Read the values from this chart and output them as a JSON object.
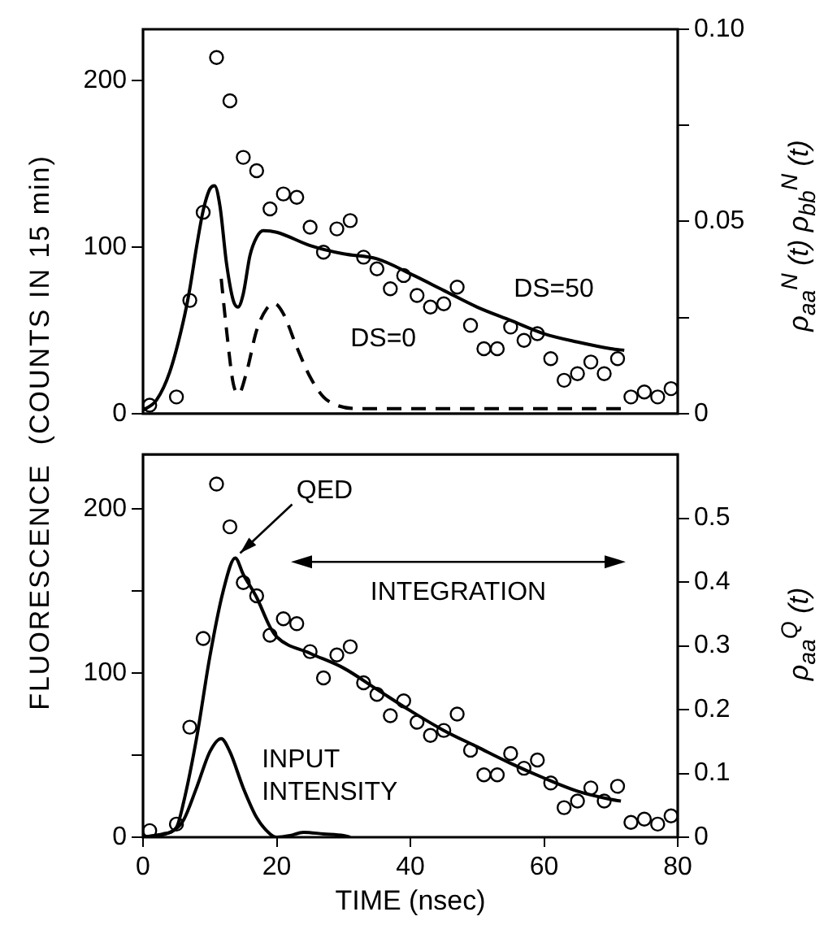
{
  "chart_data": [
    {
      "type": "scatter",
      "ylabel": "FLUORESCENCE  (COUNTS IN 15 min)",
      "y2label": "ρ$_{aa}$$^{N}$ (t) ρ$_{bb}$$^{N}$ (t)",
      "xlim": [
        0,
        80
      ],
      "xticks": [
        0,
        20,
        40,
        60,
        80
      ],
      "ylim": [
        0,
        231
      ],
      "yticks": [
        0,
        100,
        200
      ],
      "y2lim": [
        0,
        0.1
      ],
      "y2ticks": [
        0,
        {
          "value": 0.025,
          "label": null
        },
        0.05,
        {
          "value": 0.075,
          "label": null
        },
        {
          "value": 0.1,
          "label": "0.10"
        }
      ],
      "tick_labels": "y",
      "series": [
        {
          "color": "#000000",
          "marker": "circle",
          "x": [
            1,
            5,
            7,
            9,
            11,
            13,
            15,
            17,
            19,
            21,
            23,
            25,
            27,
            29,
            31,
            33,
            35,
            37,
            39,
            41,
            43,
            45,
            47,
            49,
            51,
            53,
            55,
            57,
            59,
            61,
            63,
            65,
            67,
            69,
            71,
            73,
            75,
            77,
            79
          ],
          "values": [
            5,
            10,
            68,
            121,
            214,
            188,
            154,
            146,
            123,
            132,
            130,
            112,
            97,
            111,
            116,
            94,
            87,
            75,
            83,
            71,
            64,
            66,
            76,
            53,
            39,
            39,
            52,
            44,
            48,
            33,
            20,
            24,
            31,
            24,
            33,
            10,
            13,
            10,
            15
          ]
        },
        {
          "type": "line",
          "name": "DS=50",
          "color": "#000000",
          "marker": "none",
          "line_style": "solid",
          "x": [
            0,
            2,
            4,
            6,
            7,
            8,
            9,
            10,
            10.7,
            11.5,
            12.5,
            13.5,
            14.2,
            15,
            16,
            17,
            18,
            20,
            25,
            30,
            35,
            40,
            45,
            50,
            55,
            60,
            65,
            70,
            72
          ],
          "values": [
            2,
            8,
            25,
            55,
            75,
            100,
            122,
            135,
            137,
            125,
            90,
            68,
            64,
            72,
            95,
            106,
            110,
            109,
            101,
            96,
            93,
            84,
            74,
            64,
            56,
            48,
            43,
            39,
            38
          ]
        },
        {
          "type": "line",
          "name": "DS=0",
          "color": "#000000",
          "marker": "none",
          "line_style": "dashed",
          "x": [
            11.7,
            12.5,
            13.5,
            14.3,
            15.5,
            17,
            18.5,
            19.7,
            21,
            23,
            25,
            27,
            29,
            32,
            40,
            72
          ],
          "values": [
            81,
            50,
            18,
            12,
            25,
            50,
            63,
            66,
            60,
            40,
            22,
            10,
            5,
            3,
            3,
            3
          ]
        }
      ]
    },
    {
      "type": "scatter",
      "xlabel": "TIME (nsec)",
      "y2label": "ρ$_{aa}$$^{Q}$ (t)",
      "xlim": [
        0,
        80
      ],
      "xticks": [
        0,
        20,
        40,
        60,
        80
      ],
      "ylim": [
        0,
        233
      ],
      "yticks": [
        0,
        {
          "value": 50,
          "label": null
        },
        100,
        {
          "value": 150,
          "label": null
        },
        200
      ],
      "y2lim": [
        0,
        0.6
      ],
      "y2ticks": [
        0,
        0.1,
        0.2,
        0.3,
        0.4,
        0.5
      ],
      "annotations": [
        "INTEGRATION"
      ],
      "series": [
        {
          "color": "#000000",
          "marker": "circle",
          "x": [
            1,
            5,
            7,
            9,
            11,
            13,
            15,
            17,
            19,
            21,
            23,
            25,
            27,
            29,
            31,
            33,
            35,
            37,
            39,
            41,
            43,
            45,
            47,
            49,
            51,
            53,
            55,
            57,
            59,
            61,
            63,
            65,
            67,
            69,
            71,
            73,
            75,
            77,
            79
          ],
          "values": [
            4,
            8,
            67,
            121,
            215,
            189,
            155,
            147,
            123,
            133,
            130,
            113,
            97,
            111,
            116,
            94,
            87,
            74,
            83,
            70,
            62,
            65,
            75,
            53,
            38,
            38,
            51,
            42,
            47,
            33,
            18,
            22,
            30,
            22,
            31,
            9,
            11,
            8,
            13
          ]
        },
        {
          "type": "line",
          "name": "QED",
          "color": "#000000",
          "marker": "none",
          "line_style": "solid",
          "x": [
            0,
            3,
            5,
            6,
            8,
            10,
            12,
            13.8,
            15,
            17,
            19,
            20,
            25,
            30,
            35,
            40,
            45,
            50,
            55,
            60,
            65,
            70,
            71.5
          ],
          "values": [
            0,
            2,
            6,
            20,
            60,
            110,
            150,
            170,
            160,
            146,
            128,
            122,
            112,
            103,
            90,
            77,
            65,
            55,
            45,
            36,
            28,
            23,
            22
          ]
        },
        {
          "type": "line",
          "name": "INPUT INTENSITY",
          "color": "#000000",
          "marker": "none",
          "line_style": "solid",
          "x": [
            0,
            4,
            6,
            8,
            10,
            11.7,
            13,
            15,
            17,
            19,
            20,
            22,
            24,
            27,
            30,
            31
          ],
          "values": [
            0,
            3,
            10,
            30,
            52,
            60,
            52,
            30,
            12,
            2,
            0,
            1,
            3,
            2,
            1,
            0
          ]
        }
      ]
    }
  ]
}
